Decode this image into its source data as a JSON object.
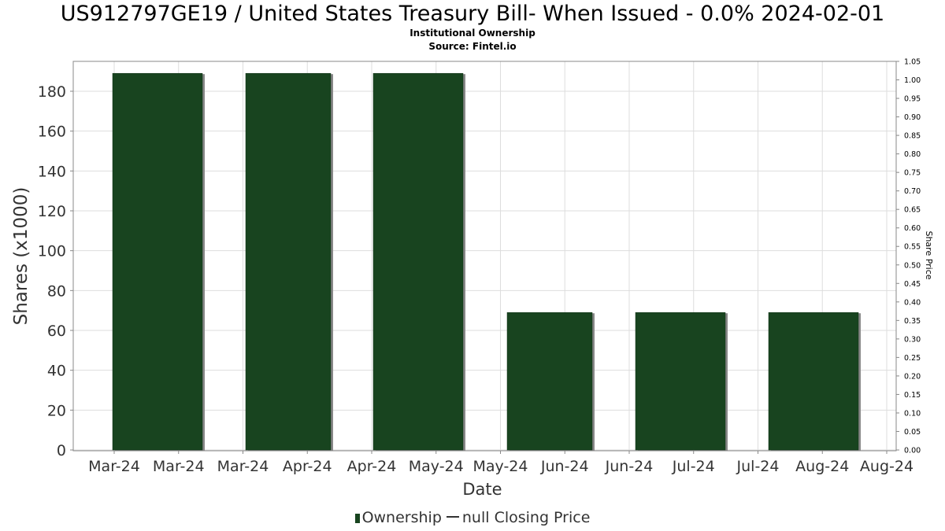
{
  "chart_data": {
    "type": "bar",
    "title": "US912797GE19 / United States Treasury Bill- When Issued - 0.0% 2024-02-01",
    "subtitle_lines": [
      "Institutional Ownership",
      "Source: Fintel.io"
    ],
    "xlabel": "Date",
    "ylabel": "Shares (x1000)",
    "y2label": "Share Price",
    "ylim": [
      0,
      195
    ],
    "yticks": [
      0,
      20,
      40,
      60,
      80,
      100,
      120,
      140,
      160,
      180
    ],
    "y2lim": [
      0,
      1.05
    ],
    "y2ticks": [
      "0.00",
      "0.05",
      "0.10",
      "0.15",
      "0.20",
      "0.25",
      "0.30",
      "0.35",
      "0.40",
      "0.45",
      "0.50",
      "0.55",
      "0.60",
      "0.65",
      "0.70",
      "0.75",
      "0.80",
      "0.85",
      "0.90",
      "0.95",
      "1.00",
      "1.05"
    ],
    "xtick_labels": [
      "Mar-24",
      "Mar-24",
      "Mar-24",
      "Apr-24",
      "Apr-24",
      "May-24",
      "May-24",
      "Jun-24",
      "Jun-24",
      "Jul-24",
      "Jul-24",
      "Aug-24",
      "Aug-24"
    ],
    "series": [
      {
        "name": "Ownership",
        "values": [
          189,
          189,
          189,
          69,
          69,
          69
        ]
      }
    ],
    "legend": [
      "Ownership",
      "null Closing Price"
    ],
    "legend_position": "bottom",
    "grid": true,
    "colors": {
      "bar": "#18441f",
      "bar_shadow": "#888888",
      "grid": "#dddddd",
      "axis": "#888888"
    }
  }
}
